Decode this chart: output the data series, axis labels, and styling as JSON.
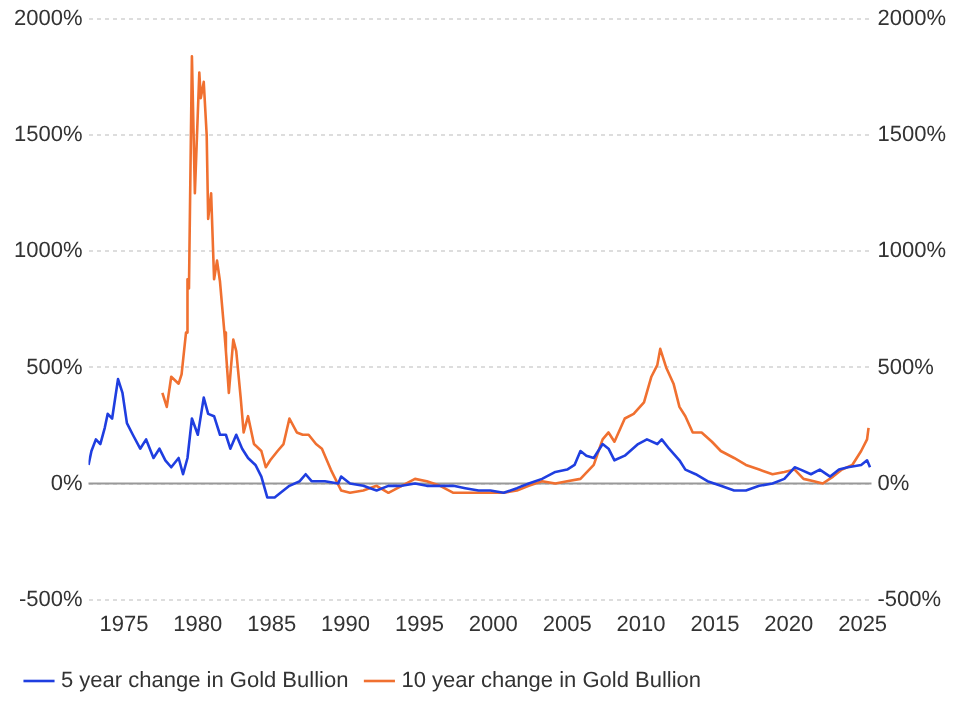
{
  "chart_data": {
    "type": "line",
    "xlim": [
      1972.6,
      2025.6
    ],
    "xticks": [
      1975,
      1980,
      1985,
      1990,
      1995,
      2000,
      2005,
      2010,
      2015,
      2020,
      2025
    ],
    "ylim": [
      -500,
      2000
    ],
    "yticks": [
      {
        "value": -500,
        "label": "-500%"
      },
      {
        "value": 0,
        "label": "0%"
      },
      {
        "value": 500,
        "label": "500%"
      },
      {
        "value": 1000,
        "label": "1000%"
      },
      {
        "value": 1500,
        "label": "1500%"
      },
      {
        "value": 2000,
        "label": "2000%"
      }
    ],
    "y2lim": [
      -500,
      2000
    ],
    "y2ticks": [
      {
        "value": -500,
        "label": "-500%"
      },
      {
        "value": 0,
        "label": "0%"
      },
      {
        "value": 500,
        "label": "500%"
      },
      {
        "value": 1000,
        "label": "1000%"
      },
      {
        "value": 1500,
        "label": "1500%"
      },
      {
        "value": 2000,
        "label": "2000%"
      }
    ],
    "grid": "y",
    "legend": "bottom left",
    "marker": "none",
    "line_style": "solid",
    "ref_lines": [
      {
        "axis": "y",
        "value": 0,
        "color": "#999999"
      }
    ],
    "series": [
      {
        "name": "5 year change in Gold Bullion",
        "color": "#1f3ee0",
        "x": [
          1972.6,
          1972.8,
          1973.1,
          1973.4,
          1973.7,
          1973.9,
          1974.2,
          1974.6,
          1974.9,
          1975.2,
          1975.6,
          1976.1,
          1976.5,
          1977.0,
          1977.4,
          1977.8,
          1978.2,
          1978.7,
          1979.0,
          1979.3,
          1979.6,
          1980.0,
          1980.4,
          1980.7,
          1981.1,
          1981.5,
          1981.9,
          1982.2,
          1982.6,
          1983.0,
          1983.4,
          1983.9,
          1984.3,
          1984.7,
          1985.2,
          1985.6,
          1986.2,
          1986.9,
          1987.3,
          1987.7,
          1988.6,
          1989.5,
          1989.7,
          1990.3,
          1991.2,
          1992.1,
          1992.9,
          1993.8,
          1994.7,
          1995.5,
          1996.4,
          1997.3,
          1998.1,
          1999.0,
          1999.8,
          2000.7,
          2001.6,
          2002.4,
          2003.3,
          2004.2,
          2005.0,
          2005.5,
          2005.9,
          2006.3,
          2006.8,
          2007.4,
          2007.8,
          2008.2,
          2008.9,
          2009.8,
          2010.4,
          2011.1,
          2011.4,
          2011.9,
          2012.6,
          2013.0,
          2013.7,
          2014.5,
          2015.4,
          2016.3,
          2017.1,
          2018.0,
          2018.9,
          2019.7,
          2020.4,
          2020.8,
          2021.5,
          2022.1,
          2022.8,
          2023.4,
          2024.0,
          2024.9,
          2025.3,
          2025.5
        ],
        "values": [
          80,
          140,
          190,
          170,
          240,
          300,
          280,
          450,
          390,
          260,
          210,
          150,
          190,
          110,
          150,
          100,
          70,
          110,
          40,
          110,
          280,
          210,
          370,
          300,
          290,
          210,
          210,
          150,
          210,
          150,
          110,
          80,
          30,
          -60,
          -60,
          -40,
          -10,
          10,
          40,
          10,
          10,
          0,
          30,
          0,
          -10,
          -30,
          -10,
          -10,
          0,
          -10,
          -10,
          -10,
          -20,
          -30,
          -30,
          -40,
          -20,
          0,
          20,
          50,
          60,
          80,
          140,
          120,
          110,
          170,
          150,
          100,
          120,
          170,
          190,
          170,
          190,
          150,
          100,
          60,
          40,
          10,
          -10,
          -30,
          -30,
          -10,
          0,
          20,
          70,
          60,
          40,
          60,
          30,
          60,
          70,
          80,
          100,
          70
        ]
      },
      {
        "name": "10 year change in Gold Bullion",
        "color": "#f07030",
        "x": [
          1977.6,
          1977.9,
          1978.2,
          1978.7,
          1978.9,
          1979.2,
          1979.3,
          1979.4,
          1979.6,
          1979.8,
          1980.1,
          1980.2,
          1980.4,
          1980.6,
          1980.7,
          1980.9,
          1981.1,
          1981.3,
          1981.5,
          1981.8,
          1981.9,
          1982.1,
          1982.4,
          1982.6,
          1982.9,
          1983.1,
          1983.4,
          1983.8,
          1984.3,
          1984.6,
          1984.9,
          1985.4,
          1985.8,
          1986.2,
          1986.7,
          1987.1,
          1987.5,
          1988.0,
          1988.4,
          1989.0,
          1989.7,
          1990.3,
          1991.2,
          1992.1,
          1992.9,
          1993.8,
          1994.7,
          1995.5,
          1996.4,
          1997.3,
          1998.1,
          1999.0,
          1999.8,
          2000.7,
          2001.6,
          2002.4,
          2003.3,
          2004.2,
          2005.0,
          2005.9,
          2006.8,
          2007.4,
          2007.8,
          2008.2,
          2008.9,
          2009.5,
          2010.2,
          2010.7,
          2011.1,
          2011.3,
          2011.7,
          2012.2,
          2012.6,
          2013.0,
          2013.5,
          2014.1,
          2014.8,
          2015.4,
          2016.3,
          2017.1,
          2018.0,
          2018.9,
          2019.7,
          2020.4,
          2021.0,
          2021.7,
          2022.3,
          2023.0,
          2023.6,
          2024.3,
          2024.9,
          2025.3,
          2025.4
        ],
        "values": [
          390,
          330,
          460,
          430,
          470,
          650,
          880,
          840,
          1840,
          1250,
          1770,
          1660,
          1730,
          1500,
          1140,
          1250,
          880,
          960,
          870,
          650,
          570,
          390,
          620,
          570,
          370,
          220,
          290,
          170,
          140,
          70,
          100,
          140,
          170,
          280,
          220,
          210,
          210,
          170,
          150,
          60,
          -30,
          -40,
          -30,
          -10,
          -40,
          -10,
          20,
          10,
          -10,
          -40,
          -40,
          -40,
          -40,
          -40,
          -30,
          -10,
          10,
          0,
          10,
          20,
          80,
          190,
          220,
          180,
          280,
          300,
          350,
          460,
          510,
          580,
          500,
          430,
          330,
          290,
          220,
          220,
          180,
          140,
          110,
          80,
          60,
          40,
          50,
          60,
          20,
          10,
          0,
          30,
          60,
          80,
          140,
          190,
          240
        ]
      }
    ]
  }
}
